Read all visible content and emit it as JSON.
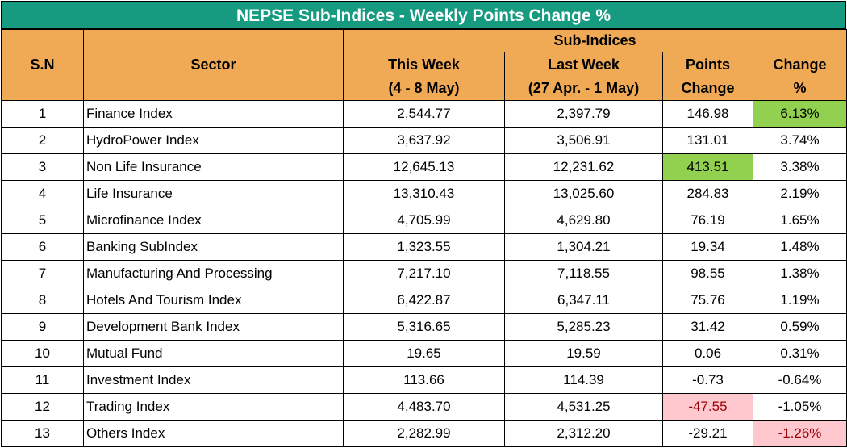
{
  "title": "NEPSE Sub-Indices - Weekly Points Change %",
  "header": {
    "sn": "S.N",
    "sector": "Sector",
    "group": "Sub-Indices",
    "this_week": "This Week",
    "this_week_range": "(4 - 8 May)",
    "last_week": "Last Week",
    "last_week_range": "(27 Apr. - 1 May)",
    "points_1": "Points",
    "points_2": "Change",
    "change_1": "Change",
    "change_2": "%"
  },
  "colors": {
    "title_bg": "#169b80",
    "header_bg": "#f0aa55",
    "highlight_green": "#92d050",
    "highlight_red_bg": "#ffc7ce",
    "highlight_red_text": "#9c0006"
  },
  "rows": [
    {
      "sn": "1",
      "sector": "Finance Index",
      "this_week": "2,544.77",
      "last_week": "2,397.79",
      "points": "146.98",
      "change": "6.13%"
    },
    {
      "sn": "2",
      "sector": "HydroPower Index",
      "this_week": "3,637.92",
      "last_week": "3,506.91",
      "points": "131.01",
      "change": "3.74%"
    },
    {
      "sn": "3",
      "sector": "Non Life Insurance",
      "this_week": "12,645.13",
      "last_week": "12,231.62",
      "points": "413.51",
      "change": "3.38%"
    },
    {
      "sn": "4",
      "sector": "Life Insurance",
      "this_week": "13,310.43",
      "last_week": "13,025.60",
      "points": "284.83",
      "change": "2.19%"
    },
    {
      "sn": "5",
      "sector": "Microfinance Index",
      "this_week": "4,705.99",
      "last_week": "4,629.80",
      "points": "76.19",
      "change": "1.65%"
    },
    {
      "sn": "6",
      "sector": "Banking SubIndex",
      "this_week": "1,323.55",
      "last_week": "1,304.21",
      "points": "19.34",
      "change": "1.48%"
    },
    {
      "sn": "7",
      "sector": "Manufacturing And Processing",
      "this_week": "7,217.10",
      "last_week": "7,118.55",
      "points": "98.55",
      "change": "1.38%"
    },
    {
      "sn": "8",
      "sector": "Hotels And Tourism Index",
      "this_week": "6,422.87",
      "last_week": "6,347.11",
      "points": "75.76",
      "change": "1.19%"
    },
    {
      "sn": "9",
      "sector": "Development Bank Index",
      "this_week": "5,316.65",
      "last_week": "5,285.23",
      "points": "31.42",
      "change": "0.59%"
    },
    {
      "sn": "10",
      "sector": "Mutual Fund",
      "this_week": "19.65",
      "last_week": "19.59",
      "points": "0.06",
      "change": "0.31%"
    },
    {
      "sn": "11",
      "sector": "Investment Index",
      "this_week": "113.66",
      "last_week": "114.39",
      "points": "-0.73",
      "change": "-0.64%"
    },
    {
      "sn": "12",
      "sector": "Trading Index",
      "this_week": "4,483.70",
      "last_week": "4,531.25",
      "points": "-47.55",
      "change": "-1.05%"
    },
    {
      "sn": "13",
      "sector": "Others Index",
      "this_week": "2,282.99",
      "last_week": "2,312.20",
      "points": "-29.21",
      "change": "-1.26%"
    }
  ]
}
